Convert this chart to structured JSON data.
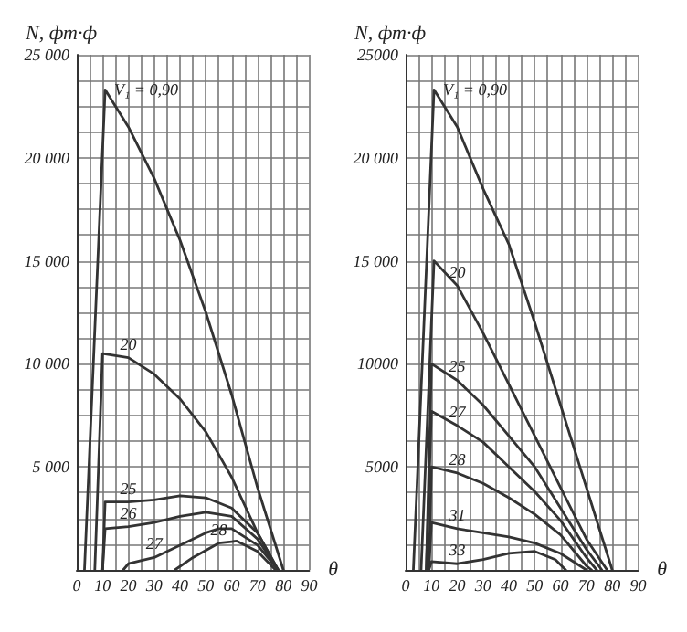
{
  "chart_data": [
    {
      "type": "line",
      "ylabel": "N, фт·ф",
      "xlabel": "θ",
      "xlim": [
        0,
        90
      ],
      "ylim": [
        0,
        25000
      ],
      "xticks": [
        0,
        {
          "value": 5,
          "label": null
        },
        10,
        {
          "value": 15,
          "label": null
        },
        20,
        {
          "value": 25,
          "label": null
        },
        30,
        {
          "value": 35,
          "label": null
        },
        40,
        {
          "value": 45,
          "label": null
        },
        50,
        {
          "value": 55,
          "label": null
        },
        60,
        {
          "value": 65,
          "label": null
        },
        70,
        {
          "value": 75,
          "label": null
        },
        80,
        {
          "value": 85,
          "label": null
        },
        90
      ],
      "yticks": [
        {
          "value": 0,
          "label": null
        },
        {
          "value": 1250,
          "label": null
        },
        {
          "value": 2500,
          "label": null
        },
        {
          "value": 3750,
          "label": null
        },
        {
          "value": 5000,
          "label": "5 000"
        },
        {
          "value": 6250,
          "label": null
        },
        {
          "value": 7500,
          "label": null
        },
        {
          "value": 8750,
          "label": null
        },
        {
          "value": 10000,
          "label": "10 000"
        },
        {
          "value": 11250,
          "label": null
        },
        {
          "value": 12500,
          "label": null
        },
        {
          "value": 13750,
          "label": null
        },
        {
          "value": 15000,
          "label": "15 000"
        },
        {
          "value": 16250,
          "label": null
        },
        {
          "value": 17500,
          "label": null
        },
        {
          "value": 18750,
          "label": null
        },
        {
          "value": 20000,
          "label": "20 000"
        },
        {
          "value": 21250,
          "label": null
        },
        {
          "value": 22500,
          "label": null
        },
        {
          "value": 23750,
          "label": null
        },
        {
          "value": 25000,
          "label": "25 000"
        }
      ],
      "grid": true,
      "marker": "none",
      "line_style": "solid",
      "series": [
        {
          "name": "V₁ = 0,90",
          "color": "#333333",
          "x": [
            3,
            11,
            20,
            30,
            40,
            50,
            60,
            70,
            80
          ],
          "values": [
            0,
            23300,
            21500,
            19000,
            16000,
            12500,
            8500,
            4000,
            0
          ]
        },
        {
          "name": "20",
          "color": "#333333",
          "x": [
            7,
            10,
            20,
            30,
            40,
            50,
            60,
            70,
            78
          ],
          "values": [
            0,
            10500,
            10300,
            9500,
            8300,
            6700,
            4500,
            1800,
            0
          ]
        },
        {
          "name": "25",
          "color": "#333333",
          "x": [
            10,
            11,
            20,
            30,
            40,
            50,
            60,
            70,
            78
          ],
          "values": [
            0,
            3300,
            3300,
            3400,
            3600,
            3500,
            3000,
            1800,
            0
          ]
        },
        {
          "name": "26",
          "color": "#333333",
          "x": [
            10,
            11,
            20,
            30,
            40,
            50,
            60,
            70,
            78
          ],
          "values": [
            0,
            2000,
            2100,
            2300,
            2600,
            2800,
            2600,
            1500,
            0
          ]
        },
        {
          "name": "27",
          "color": "#333333",
          "x": [
            18,
            20,
            30,
            40,
            50,
            55,
            60,
            70,
            78
          ],
          "values": [
            0,
            300,
            600,
            1200,
            1800,
            2000,
            2000,
            1200,
            0
          ]
        },
        {
          "name": "28",
          "color": "#333333",
          "x": [
            38,
            45,
            55,
            62,
            70,
            77
          ],
          "values": [
            0,
            600,
            1300,
            1400,
            900,
            0
          ]
        }
      ]
    },
    {
      "type": "line",
      "ylabel": "N, фт·ф",
      "xlabel": "θ",
      "xlim": [
        0,
        90
      ],
      "ylim": [
        0,
        25000
      ],
      "xticks": [
        0,
        {
          "value": 5,
          "label": null
        },
        10,
        {
          "value": 15,
          "label": null
        },
        20,
        {
          "value": 25,
          "label": null
        },
        30,
        {
          "value": 35,
          "label": null
        },
        40,
        {
          "value": 45,
          "label": null
        },
        50,
        {
          "value": 55,
          "label": null
        },
        60,
        {
          "value": 65,
          "label": null
        },
        70,
        {
          "value": 75,
          "label": null
        },
        80,
        {
          "value": 85,
          "label": null
        },
        90
      ],
      "yticks": [
        {
          "value": 0,
          "label": null
        },
        {
          "value": 1250,
          "label": null
        },
        {
          "value": 2500,
          "label": null
        },
        {
          "value": 3750,
          "label": null
        },
        {
          "value": 5000,
          "label": "5000"
        },
        {
          "value": 6250,
          "label": null
        },
        {
          "value": 7500,
          "label": null
        },
        {
          "value": 8750,
          "label": null
        },
        {
          "value": 10000,
          "label": "10000"
        },
        {
          "value": 11250,
          "label": null
        },
        {
          "value": 12500,
          "label": null
        },
        {
          "value": 13750,
          "label": null
        },
        {
          "value": 15000,
          "label": "15 000"
        },
        {
          "value": 16250,
          "label": null
        },
        {
          "value": 17500,
          "label": null
        },
        {
          "value": 18750,
          "label": null
        },
        {
          "value": 20000,
          "label": "20 000"
        },
        {
          "value": 21250,
          "label": null
        },
        {
          "value": 22500,
          "label": null
        },
        {
          "value": 23750,
          "label": null
        },
        {
          "value": 25000,
          "label": "25000"
        }
      ],
      "grid": true,
      "marker": "none",
      "line_style": "solid",
      "series": [
        {
          "name": "V₁ = 0,90",
          "color": "#333333",
          "x": [
            3,
            11,
            20,
            30,
            40,
            50,
            60,
            70,
            80
          ],
          "values": [
            0,
            23300,
            21500,
            18500,
            15800,
            12000,
            8000,
            4000,
            0
          ]
        },
        {
          "name": "20",
          "color": "#333333",
          "x": [
            6,
            11,
            20,
            30,
            40,
            50,
            60,
            70,
            78
          ],
          "values": [
            0,
            15000,
            13800,
            11500,
            9000,
            6500,
            4000,
            1500,
            0
          ]
        },
        {
          "name": "25",
          "color": "#333333",
          "x": [
            8,
            10,
            20,
            30,
            40,
            50,
            60,
            70,
            76
          ],
          "values": [
            0,
            10000,
            9200,
            8000,
            6500,
            5000,
            3000,
            1000,
            0
          ]
        },
        {
          "name": "27",
          "color": "#333333",
          "x": [
            8,
            10,
            20,
            30,
            40,
            50,
            60,
            70,
            74
          ],
          "values": [
            0,
            7700,
            7000,
            6200,
            5000,
            3800,
            2400,
            600,
            0
          ]
        },
        {
          "name": "28",
          "color": "#333333",
          "x": [
            9,
            10,
            20,
            30,
            40,
            50,
            60,
            70,
            72
          ],
          "values": [
            0,
            5000,
            4700,
            4200,
            3500,
            2700,
            1700,
            200,
            0
          ]
        },
        {
          "name": "31",
          "color": "#333333",
          "x": [
            9,
            10,
            20,
            30,
            40,
            50,
            60,
            70
          ],
          "values": [
            0,
            2300,
            2000,
            1800,
            1600,
            1300,
            800,
            0
          ]
        },
        {
          "name": "33",
          "color": "#333333",
          "x": [
            9,
            10,
            20,
            30,
            40,
            50,
            58,
            62
          ],
          "values": [
            0,
            400,
            300,
            500,
            800,
            900,
            500,
            0
          ]
        }
      ]
    }
  ]
}
